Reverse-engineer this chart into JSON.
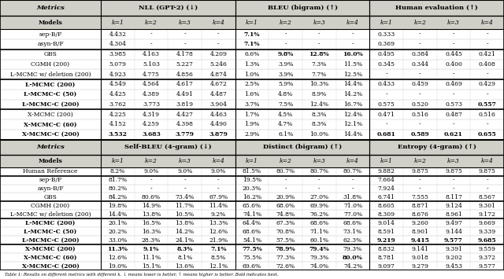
{
  "top_table": {
    "section_headers": [
      "NLL (GPT-2) (↓)",
      "BLEU (bigram) (↑)",
      "Human evaluation (↑)"
    ],
    "sub_headers": [
      "Models",
      "k=1",
      "k=2",
      "k=3",
      "k=4",
      "k=1",
      "k=2",
      "k=3",
      "k=4",
      "k=1",
      "k=2",
      "k=3",
      "k=4"
    ],
    "rows": [
      [
        "sep-B/F",
        "4.432",
        "-",
        "-",
        "-",
        "7.1%",
        "-",
        "-",
        "-",
        "0.333",
        "-",
        "-",
        "-"
      ],
      [
        "asyn-B/F",
        "4.304",
        "-",
        "-",
        "-",
        "7.1%",
        "-",
        "-",
        "-",
        "0.369",
        "-",
        "-",
        "-"
      ],
      [
        "GBS",
        "3.985",
        "4.163",
        "4.178",
        "4.209",
        "6.6%",
        "9.8%",
        "12.8%",
        "16.0%",
        "0.495",
        "0.384",
        "0.445",
        "0.421"
      ],
      [
        "CGMH (200)",
        "5.079",
        "5.103",
        "5.227",
        "5.246",
        "1.3%",
        "3.9%",
        "7.3%",
        "11.5%",
        "0.345",
        "0.344",
        "0.400",
        "0.408"
      ],
      [
        "L-MCMC w/ deletion (200)",
        "4.923",
        "4.775",
        "4.856",
        "4.874",
        "1.0%",
        "3.9%",
        "7.7%",
        "12.5%",
        "-",
        "-",
        "-",
        "-"
      ],
      [
        "L-MCMC (200)",
        "4.549",
        "4.564",
        "4.617",
        "4.672",
        "2.5%",
        "5.9%",
        "10.3%",
        "14.4%",
        "0.433",
        "0.459",
        "0.469",
        "0.429"
      ],
      [
        "L-MCMC-C (50)",
        "4.425",
        "4.389",
        "4.491",
        "4.487",
        "1.6%",
        "4.8%",
        "8.9%",
        "14.2%",
        "-",
        "-",
        "-",
        "-"
      ],
      [
        "L-MCMC-C (200)",
        "3.762",
        "3.773",
        "3.819",
        "3.904",
        "3.7%",
        "7.5%",
        "12.4%",
        "16.7%",
        "0.575",
        "0.520",
        "0.573",
        "0.557"
      ],
      [
        "X-MCMC (200)",
        "4.225",
        "4.319",
        "4.427",
        "4.463",
        "1.7%",
        "4.5%",
        "8.3%",
        "12.4%",
        "0.471",
        "0.516",
        "0.487",
        "0.516"
      ],
      [
        "X-MCMC-C (60)",
        "4.152",
        "4.259",
        "4.398",
        "4.490",
        "1.9%",
        "4.7%",
        "8.3%",
        "12.1%",
        "-",
        "-",
        "-",
        "-"
      ],
      [
        "X-MCMC-C (200)",
        "3.532",
        "3.683",
        "3.779",
        "3.879",
        "2.9%",
        "6.1%",
        "10.0%",
        "14.4%",
        "0.681",
        "0.589",
        "0.621",
        "0.655"
      ]
    ],
    "bold_cells": {
      "0": [
        5
      ],
      "1": [
        5
      ],
      "2": [
        6,
        7,
        8
      ],
      "7": [
        12
      ],
      "10": [
        1,
        2,
        3,
        4,
        9,
        10,
        11,
        12
      ]
    },
    "bold_model": [
      5,
      6,
      7,
      9,
      10
    ],
    "group_sep_after": [
      1,
      4,
      7
    ]
  },
  "bottom_table": {
    "section_headers": [
      "Self-BLEU (4-gram) (↓)",
      "Distinct (bigram) (↑)",
      "Entropy (4-gram) (↑)"
    ],
    "sub_headers": [
      "Models",
      "k=1",
      "k=2",
      "k=3",
      "k=4",
      "k=1",
      "k=2",
      "k=3",
      "k=4",
      "k=1",
      "k=2",
      "k=3",
      "k=4"
    ],
    "rows": [
      [
        "Human Reference",
        "8.2%",
        "9.0%",
        "9.0%",
        "9.0%",
        "81.5%",
        "80.7%",
        "80.7%",
        "80.7%",
        "9.882",
        "9.875",
        "9.875",
        "9.875"
      ],
      [
        "sep-B/F",
        "81.7%",
        "-",
        "-",
        "-",
        "19.5%",
        "-",
        "-",
        "-",
        "7.664",
        "-",
        "-",
        "-"
      ],
      [
        "asyn-B/F",
        "80.2%",
        "-",
        "-",
        "-",
        "20.3%",
        "-",
        "-",
        "-",
        "7.924",
        "-",
        "-",
        "-"
      ],
      [
        "GBS",
        "84.2%",
        "80.6%",
        "73.4%",
        "67.9%",
        "16.2%",
        "20.9%",
        "27.0%",
        "31.8%",
        "6.741",
        "7.555",
        "8.117",
        "8.567"
      ],
      [
        "CGMH (200)",
        "19.8%",
        "14.9%",
        "11.7%",
        "11.4%",
        "65.6%",
        "68.0%",
        "69.9%",
        "71.0%",
        "8.605",
        "8.871",
        "9.124",
        "9.301"
      ],
      [
        "L-MCMC w/ deletion (200)",
        "14.4%",
        "13.8%",
        "10.5%",
        "9.2%",
        "74.1%",
        "74.8%",
        "76.2%",
        "77.0%",
        "8.309",
        "8.676",
        "8.961",
        "9.172"
      ],
      [
        "L-MCMC (200)",
        "20.1%",
        "16.5%",
        "13.8%",
        "13.3%",
        "64.4%",
        "67.3%",
        "68.6%",
        "68.6%",
        "9.014",
        "9.260",
        "9.497",
        "9.669"
      ],
      [
        "L-MCMC-C (50)",
        "20.2%",
        "16.3%",
        "14.2%",
        "12.6%",
        "68.6%",
        "70.8%",
        "71.1%",
        "73.1%",
        "8.591",
        "8.901",
        "9.144",
        "9.339"
      ],
      [
        "L-MCMC-C (200)",
        "33.0%",
        "28.3%",
        "24.1%",
        "21.9%",
        "54.1%",
        "57.5%",
        "60.1%",
        "62.3%",
        "9.219",
        "9.415",
        "9.577",
        "9.685"
      ],
      [
        "X-MCMC (200)",
        "11.3%",
        "9.1%",
        "8.3%",
        "7.1%",
        "77.5%",
        "78.9%",
        "79.4%",
        "79.3%",
        "8.832",
        "9.141",
        "9.391",
        "9.559"
      ],
      [
        "X-MCMC-C (60)",
        "12.6%",
        "11.1%",
        "8.1%",
        "8.5%",
        "75.5%",
        "77.3%",
        "79.3%",
        "80.0%",
        "8.781",
        "9.018",
        "9.202",
        "9.372"
      ],
      [
        "X-MCMC-C (200)",
        "19.0%",
        "15.1%",
        "13.6%",
        "12.1%",
        "69.6%",
        "72.6%",
        "74.0%",
        "74.2%",
        "9.097",
        "9.279",
        "9.453",
        "9.577"
      ]
    ],
    "bold_cells": {
      "8": [
        9,
        10,
        11,
        12
      ],
      "9": [
        1,
        2,
        3,
        4,
        5,
        6,
        7
      ],
      "10": [
        8
      ],
      "11": []
    },
    "bold_model": [
      6,
      7,
      8,
      9,
      10,
      11
    ],
    "group_sep_after": [
      0,
      3,
      5,
      8
    ]
  },
  "caption": "Table 1: Results on ...",
  "font_size": 5.5,
  "header_font_size": 6.0
}
